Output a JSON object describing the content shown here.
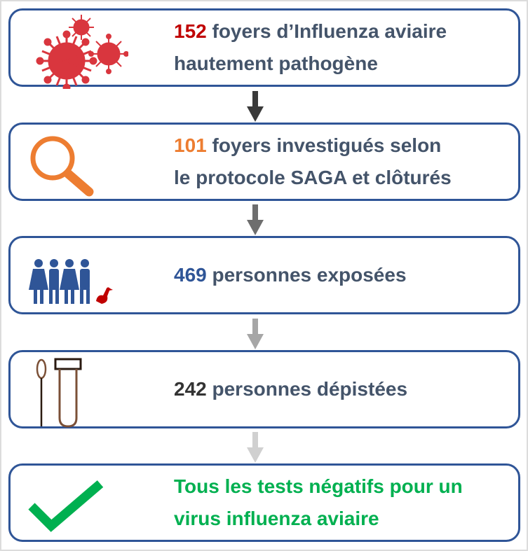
{
  "steps": [
    {
      "number": "152",
      "number_color": "#c00000",
      "line1": " foyers d’Influenza aviaire",
      "line2": "hautement pathogène",
      "icon": "virus-icon"
    },
    {
      "number": "101",
      "number_color": "#ed7d31",
      "line1": " foyers investigués selon",
      "line2": "le protocole SAGA et clôturés",
      "icon": "magnifier-icon"
    },
    {
      "number": "469",
      "number_color": "#2f5597",
      "line1": " personnes exposées",
      "icon": "people-duck-icon"
    },
    {
      "number": "242",
      "number_color": "#333333",
      "line1": " personnes dépistées",
      "icon": "swab-tube-icon"
    },
    {
      "line1": "Tous les tests négatifs pour un",
      "line2": "virus influenza aviaire",
      "text_color": "#00b050",
      "icon": "checkmark-icon"
    }
  ],
  "arrow_colors": [
    "#3a3a3a",
    "#6e6e6e",
    "#a6a6a6",
    "#d0d0d0"
  ]
}
